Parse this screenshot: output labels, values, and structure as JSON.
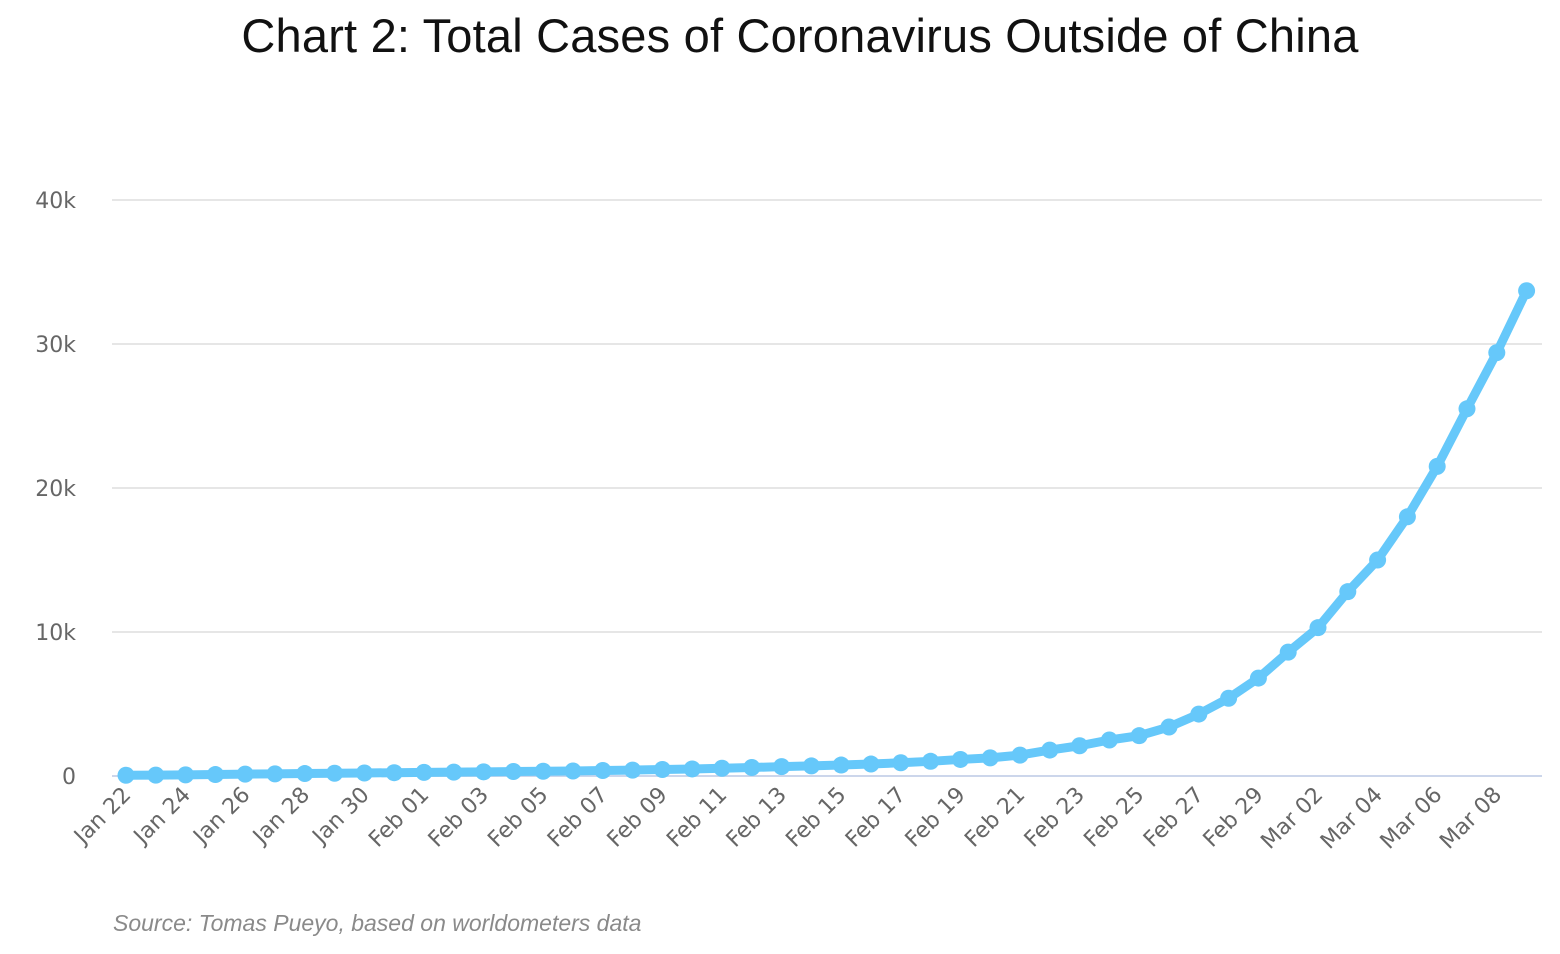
{
  "colors": {
    "line": "#66c8fa",
    "grid": "#e6e6e6",
    "axis_line": "#ccd6eb",
    "tick_text": "#666666"
  },
  "chart_data": {
    "type": "line",
    "title": "Chart 2: Total Cases of Coronavirus Outside of China",
    "source": "Source: Tomas Pueyo, based on worldometers data",
    "xlabel": "",
    "ylabel": "",
    "ylim": [
      0,
      40000
    ],
    "yticks": [
      0,
      10000,
      20000,
      30000,
      40000
    ],
    "ytick_labels": [
      "0",
      "10k",
      "20k",
      "30k",
      "40k"
    ],
    "xtick_labels": [
      "Jan 22",
      "Jan 24",
      "Jan 26",
      "Jan 28",
      "Jan 30",
      "Feb 01",
      "Feb 03",
      "Feb 05",
      "Feb 07",
      "Feb 09",
      "Feb 11",
      "Feb 13",
      "Feb 15",
      "Feb 17",
      "Feb 19",
      "Feb 21",
      "Feb 23",
      "Feb 25",
      "Feb 27",
      "Feb 29",
      "Mar 02",
      "Mar 04",
      "Mar 06",
      "Mar 08"
    ],
    "grid": true,
    "legend": false,
    "categories": [
      "Jan 22",
      "Jan 23",
      "Jan 24",
      "Jan 25",
      "Jan 26",
      "Jan 27",
      "Jan 28",
      "Jan 29",
      "Jan 30",
      "Jan 31",
      "Feb 01",
      "Feb 02",
      "Feb 03",
      "Feb 04",
      "Feb 05",
      "Feb 06",
      "Feb 07",
      "Feb 08",
      "Feb 09",
      "Feb 10",
      "Feb 11",
      "Feb 12",
      "Feb 13",
      "Feb 14",
      "Feb 15",
      "Feb 16",
      "Feb 17",
      "Feb 18",
      "Feb 19",
      "Feb 20",
      "Feb 21",
      "Feb 22",
      "Feb 23",
      "Feb 24",
      "Feb 25",
      "Feb 26",
      "Feb 27",
      "Feb 28",
      "Feb 29",
      "Mar 01",
      "Mar 02",
      "Mar 03",
      "Mar 04",
      "Mar 05",
      "Mar 06",
      "Mar 07",
      "Mar 08",
      "Mar 09"
    ],
    "series": [
      {
        "values": [
          50,
          60,
          80,
          100,
          130,
          150,
          170,
          190,
          210,
          230,
          250,
          270,
          290,
          310,
          330,
          350,
          380,
          410,
          450,
          490,
          540,
          590,
          650,
          700,
          760,
          830,
          920,
          1020,
          1150,
          1260,
          1450,
          1800,
          2100,
          2500,
          2800,
          3400,
          4300,
          5400,
          6800,
          8600,
          10300,
          12800,
          15000,
          18000,
          21500,
          25500,
          29400,
          33700
        ]
      }
    ]
  }
}
